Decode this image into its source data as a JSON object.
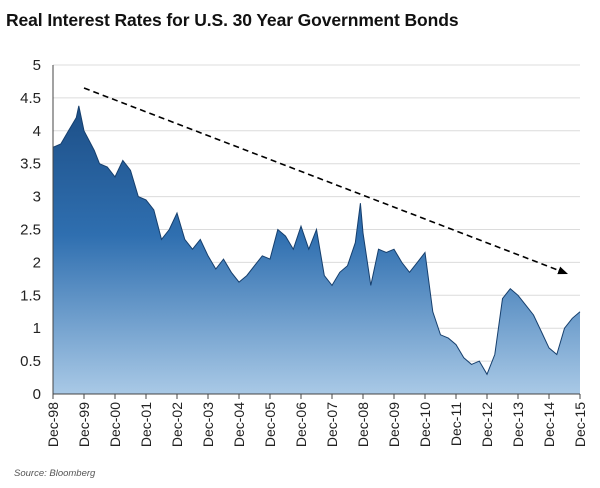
{
  "title": "Real Interest Rates for U.S. 30 Year Government Bonds",
  "source": "Source: Bloomberg",
  "colors": {
    "area_top": "#1d4f87",
    "area_mid": "#2f6fb0",
    "area_bottom": "#a9c9e6",
    "trend": "#000000"
  },
  "chart_data": {
    "type": "area",
    "title": "Real Interest Rates for U.S. 30 Year Government Bonds",
    "xlabel": "",
    "ylabel": "",
    "x_ticks": [
      "Dec-98",
      "Dec-99",
      "Dec-00",
      "Dec-01",
      "Dec-02",
      "Dec-03",
      "Dec-04",
      "Dec-05",
      "Dec-06",
      "Dec-07",
      "Dec-08",
      "Dec-09",
      "Dec-10",
      "Dec-11",
      "Dec-12",
      "Dec-13",
      "Dec-14",
      "Dec-15"
    ],
    "y_ticks": [
      "0",
      "0.5",
      "1",
      "1.5",
      "2",
      "2.5",
      "3",
      "3.5",
      "4",
      "4.5",
      "5"
    ],
    "ylim": [
      0,
      5
    ],
    "xlim": [
      "1998-12",
      "2015-12"
    ],
    "grid": "horizontal",
    "series": [
      {
        "x": [
          "1998-12",
          "1999-03",
          "1999-06",
          "1999-09",
          "1999-10",
          "1999-12",
          "2000-02",
          "2000-04",
          "2000-06",
          "2000-09",
          "2000-12",
          "2001-03",
          "2001-06",
          "2001-09",
          "2001-12",
          "2002-03",
          "2002-06",
          "2002-09",
          "2002-12",
          "2003-03",
          "2003-06",
          "2003-09",
          "2003-12",
          "2004-03",
          "2004-06",
          "2004-09",
          "2004-12",
          "2005-03",
          "2005-06",
          "2005-09",
          "2005-12",
          "2006-03",
          "2006-06",
          "2006-09",
          "2006-12",
          "2007-03",
          "2007-06",
          "2007-09",
          "2007-12",
          "2008-03",
          "2008-06",
          "2008-09",
          "2008-11",
          "2008-12",
          "2009-03",
          "2009-06",
          "2009-09",
          "2009-12",
          "2010-03",
          "2010-06",
          "2010-09",
          "2010-12",
          "2011-03",
          "2011-06",
          "2011-09",
          "2011-12",
          "2012-03",
          "2012-06",
          "2012-09",
          "2012-12",
          "2013-03",
          "2013-06",
          "2013-09",
          "2013-12",
          "2014-03",
          "2014-06",
          "2014-09",
          "2014-12",
          "2015-03",
          "2015-06",
          "2015-09",
          "2015-12"
        ],
        "values": [
          3.75,
          3.8,
          4.0,
          4.2,
          4.38,
          4.0,
          3.85,
          3.7,
          3.5,
          3.45,
          3.3,
          3.55,
          3.4,
          3.0,
          2.95,
          2.8,
          2.35,
          2.5,
          2.75,
          2.35,
          2.2,
          2.35,
          2.1,
          1.9,
          2.05,
          1.85,
          1.7,
          1.8,
          1.95,
          2.1,
          2.05,
          2.5,
          2.4,
          2.2,
          2.55,
          2.2,
          2.5,
          1.8,
          1.65,
          1.85,
          1.95,
          2.3,
          2.9,
          2.45,
          1.65,
          2.2,
          2.15,
          2.2,
          2.0,
          1.85,
          2.0,
          2.15,
          1.25,
          0.9,
          0.85,
          0.75,
          0.55,
          0.45,
          0.5,
          0.3,
          0.6,
          1.45,
          1.6,
          1.5,
          1.35,
          1.2,
          0.95,
          0.7,
          0.6,
          1.0,
          1.15,
          1.25
        ]
      }
    ],
    "trend_line": {
      "from": {
        "x": "1999-12",
        "y": 4.65
      },
      "to": {
        "x": "2015-07",
        "y": 1.83
      }
    }
  }
}
